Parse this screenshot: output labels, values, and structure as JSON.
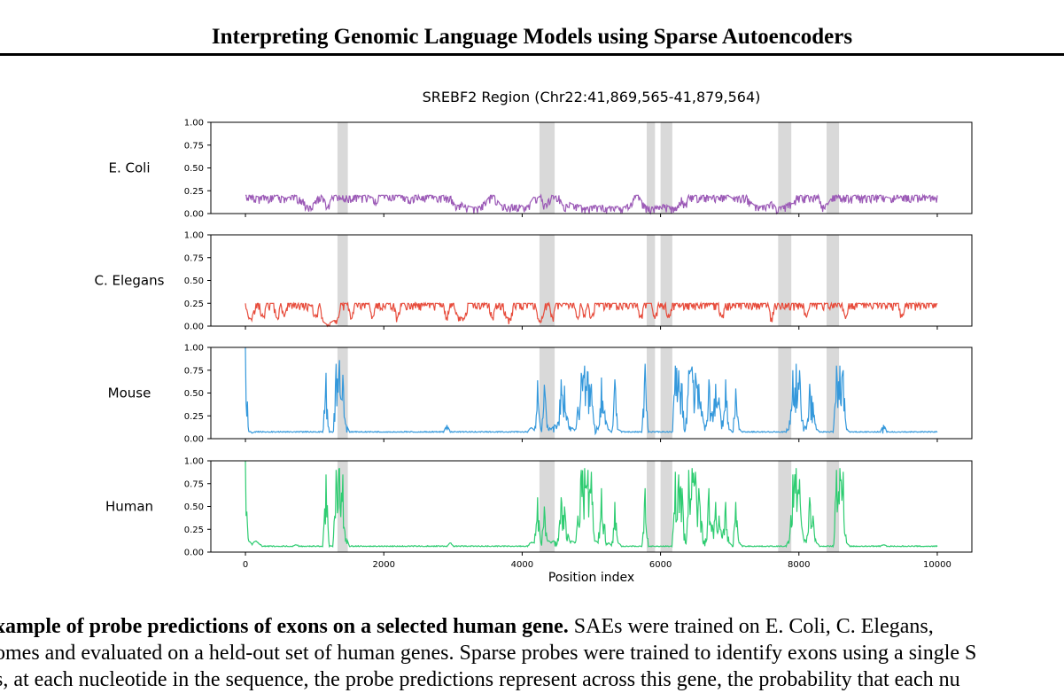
{
  "header": {
    "title": "Interpreting Genomic Language Models using Sparse Autoencoders"
  },
  "chart_data": {
    "type": "line",
    "title": "SREBF2 Region (Chr22:41,869,565-41,879,564)",
    "xlabel": "Position index",
    "xlim": [
      -500,
      10500
    ],
    "xticks": [
      0,
      2000,
      4000,
      6000,
      8000,
      10000
    ],
    "ylim": [
      0,
      1
    ],
    "yticks": [
      "0.00",
      "0.25",
      "0.50",
      "0.75",
      "1.00"
    ],
    "grid": false,
    "exon_regions": [
      [
        1330,
        1480
      ],
      [
        4250,
        4470
      ],
      [
        5800,
        5920
      ],
      [
        6000,
        6170
      ],
      [
        7700,
        7890
      ],
      [
        8400,
        8580
      ]
    ],
    "exon_color": "#d9d9d9",
    "series": [
      {
        "name": "E. Coli",
        "color": "#9b59b6",
        "kind": "low",
        "values": [
          0.2,
          0.2,
          0.2,
          0.19,
          0.18,
          0.2,
          0.18,
          0.2,
          0.2,
          0.2,
          0.19,
          0.17,
          0.18,
          0.2,
          0.2,
          0.18,
          0.16,
          0.09,
          0.08,
          0.12,
          0.18,
          0.2,
          0.15,
          0.09,
          0.19,
          0.2,
          0.2,
          0.2,
          0.2,
          0.19,
          0.2,
          0.2,
          0.19,
          0.2,
          0.2,
          0.18,
          0.16,
          0.2,
          0.2,
          0.2,
          0.2,
          0.2,
          0.2,
          0.2,
          0.19,
          0.18,
          0.17,
          0.2,
          0.2,
          0.19,
          0.2,
          0.2,
          0.2,
          0.18,
          0.19,
          0.2,
          0.18,
          0.19,
          0.1,
          0.09,
          0.12,
          0.1,
          0.08,
          0.07,
          0.07,
          0.08,
          0.12,
          0.15,
          0.2,
          0.2,
          0.14,
          0.09,
          0.1,
          0.08,
          0.1,
          0.09,
          0.1,
          0.08,
          0.08,
          0.12,
          0.18,
          0.17,
          0.2,
          0.1,
          0.15,
          0.2,
          0.19,
          0.2,
          0.09,
          0.1,
          0.12,
          0.1,
          0.1,
          0.09,
          0.07,
          0.07,
          0.08,
          0.09,
          0.08,
          0.09,
          0.07,
          0.08,
          0.07,
          0.08,
          0.07,
          0.07,
          0.1,
          0.12,
          0.2,
          0.2,
          0.14,
          0.09,
          0.08,
          0.07,
          0.08,
          0.08,
          0.1,
          0.09,
          0.07,
          0.07,
          0.09,
          0.18,
          0.09,
          0.2,
          0.2,
          0.2,
          0.18,
          0.2,
          0.2,
          0.18,
          0.2,
          0.19,
          0.2,
          0.2,
          0.2,
          0.17,
          0.18,
          0.19,
          0.2,
          0.2,
          0.14,
          0.1,
          0.09,
          0.08,
          0.09,
          0.1,
          0.13,
          0.08,
          0.07,
          0.08,
          0.1,
          0.12,
          0.11,
          0.2,
          0.2,
          0.19,
          0.2,
          0.18,
          0.2,
          0.2,
          0.09,
          0.1,
          0.13,
          0.2,
          0.2,
          0.2,
          0.2,
          0.2,
          0.18,
          0.2,
          0.2,
          0.19,
          0.2,
          0.19,
          0.2,
          0.2,
          0.2,
          0.2,
          0.18,
          0.17,
          0.2,
          0.2,
          0.19,
          0.2,
          0.2,
          0.2,
          0.2,
          0.2,
          0.2,
          0.19,
          0.2,
          0.18,
          0.2
        ]
      },
      {
        "name": "C. Elegans",
        "color": "#e74c3c",
        "kind": "low",
        "values": [
          0.25,
          0.08,
          0.12,
          0.25,
          0.25,
          0.1,
          0.25,
          0.25,
          0.25,
          0.09,
          0.25,
          0.1,
          0.25,
          0.25,
          0.25,
          0.25,
          0.25,
          0.25,
          0.24,
          0.23,
          0.1,
          0.25,
          0.05,
          0.02,
          0.04,
          0.06,
          0.07,
          0.25,
          0.25,
          0.25,
          0.08,
          0.25,
          0.25,
          0.25,
          0.25,
          0.25,
          0.1,
          0.25,
          0.25,
          0.25,
          0.25,
          0.25,
          0.25,
          0.09,
          0.25,
          0.25,
          0.25,
          0.25,
          0.25,
          0.25,
          0.25,
          0.25,
          0.25,
          0.25,
          0.25,
          0.25,
          0.25,
          0.09,
          0.25,
          0.25,
          0.12,
          0.1,
          0.08,
          0.25,
          0.25,
          0.25,
          0.25,
          0.25,
          0.25,
          0.25,
          0.09,
          0.25,
          0.25,
          0.25,
          0.1,
          0.08,
          0.25,
          0.25,
          0.25,
          0.25,
          0.25,
          0.25,
          0.25,
          0.08,
          0.1,
          0.25,
          0.25,
          0.09,
          0.25,
          0.25,
          0.25,
          0.25,
          0.25,
          0.25,
          0.1,
          0.25,
          0.12,
          0.25,
          0.1,
          0.25,
          0.25,
          0.25,
          0.25,
          0.25,
          0.25,
          0.25,
          0.25,
          0.25,
          0.25,
          0.25,
          0.25,
          0.25,
          0.1,
          0.25,
          0.25,
          0.25,
          0.08,
          0.25,
          0.25,
          0.25,
          0.09,
          0.25,
          0.25,
          0.25,
          0.25,
          0.25,
          0.25,
          0.25,
          0.25,
          0.25,
          0.25,
          0.25,
          0.25,
          0.25,
          0.25,
          0.1,
          0.25,
          0.25,
          0.25,
          0.25,
          0.25,
          0.25,
          0.25,
          0.25,
          0.25,
          0.25,
          0.25,
          0.25,
          0.25,
          0.09,
          0.25,
          0.25,
          0.25,
          0.25,
          0.25,
          0.25,
          0.25,
          0.25,
          0.25,
          0.1,
          0.25,
          0.25,
          0.25,
          0.25,
          0.25,
          0.25,
          0.25,
          0.25,
          0.25,
          0.25,
          0.08,
          0.25,
          0.25,
          0.25,
          0.25,
          0.25,
          0.25,
          0.25,
          0.25,
          0.25,
          0.25,
          0.25,
          0.25,
          0.25,
          0.25,
          0.25,
          0.1,
          0.25,
          0.25,
          0.25,
          0.25,
          0.25,
          0.25,
          0.25,
          0.25,
          0.25,
          0.25
        ]
      },
      {
        "name": "Mouse",
        "color": "#3498db",
        "kind": "spiky",
        "values": [
          1.0,
          0.08,
          0.06,
          0.07,
          0.07,
          0.07,
          0.07,
          0.07,
          0.07,
          0.07,
          0.07,
          0.07,
          0.07,
          0.07,
          0.07,
          0.07,
          0.07,
          0.07,
          0.07,
          0.07,
          0.07,
          0.07,
          0.07,
          0.07,
          0.72,
          0.07,
          0.07,
          0.82,
          0.86,
          0.7,
          0.15,
          0.07,
          0.07,
          0.07,
          0.07,
          0.07,
          0.07,
          0.07,
          0.07,
          0.07,
          0.07,
          0.07,
          0.07,
          0.07,
          0.07,
          0.07,
          0.07,
          0.07,
          0.07,
          0.07,
          0.07,
          0.07,
          0.07,
          0.07,
          0.07,
          0.07,
          0.07,
          0.07,
          0.07,
          0.07,
          0.15,
          0.07,
          0.07,
          0.07,
          0.07,
          0.07,
          0.07,
          0.07,
          0.07,
          0.07,
          0.07,
          0.07,
          0.07,
          0.07,
          0.07,
          0.07,
          0.07,
          0.07,
          0.07,
          0.07,
          0.07,
          0.07,
          0.07,
          0.07,
          0.07,
          0.12,
          0.09,
          0.64,
          0.1,
          0.59,
          0.14,
          0.1,
          0.15,
          0.18,
          0.65,
          0.58,
          0.22,
          0.12,
          0.09,
          0.35,
          0.72,
          0.8,
          0.73,
          0.6,
          0.15,
          0.1,
          0.67,
          0.3,
          0.1,
          0.07,
          0.65,
          0.1,
          0.07,
          0.07,
          0.07,
          0.07,
          0.07,
          0.07,
          0.07,
          0.82,
          0.07,
          0.07,
          0.07,
          0.07,
          0.07,
          0.07,
          0.07,
          0.07,
          0.8,
          0.75,
          0.6,
          0.1,
          0.75,
          0.79,
          0.72,
          0.6,
          0.3,
          0.15,
          0.65,
          0.3,
          0.6,
          0.45,
          0.2,
          0.65,
          0.1,
          0.07,
          0.55,
          0.1,
          0.07,
          0.07,
          0.07,
          0.07,
          0.07,
          0.07,
          0.07,
          0.07,
          0.07,
          0.07,
          0.07,
          0.07,
          0.07,
          0.07,
          0.2,
          0.75,
          0.82,
          0.75,
          0.2,
          0.1,
          0.6,
          0.4,
          0.1,
          0.07,
          0.07,
          0.07,
          0.07,
          0.07,
          0.8,
          0.8,
          0.75,
          0.1,
          0.07,
          0.07,
          0.07,
          0.07,
          0.07,
          0.07,
          0.07,
          0.07,
          0.07,
          0.07,
          0.15,
          0.07,
          0.07,
          0.07,
          0.07,
          0.07,
          0.07,
          0.07,
          0.07,
          0.07,
          0.07,
          0.07,
          0.07,
          0.07,
          0.07,
          0.07,
          0.07
        ]
      },
      {
        "name": "Human",
        "color": "#2ecc71",
        "kind": "spiky",
        "values": [
          1.0,
          0.12,
          0.08,
          0.12,
          0.09,
          0.06,
          0.06,
          0.06,
          0.06,
          0.06,
          0.06,
          0.06,
          0.06,
          0.06,
          0.06,
          0.08,
          0.06,
          0.06,
          0.06,
          0.06,
          0.06,
          0.06,
          0.06,
          0.06,
          0.85,
          0.06,
          0.06,
          0.9,
          0.92,
          0.85,
          0.15,
          0.06,
          0.06,
          0.06,
          0.06,
          0.06,
          0.06,
          0.06,
          0.06,
          0.06,
          0.06,
          0.06,
          0.06,
          0.06,
          0.06,
          0.06,
          0.06,
          0.06,
          0.06,
          0.06,
          0.06,
          0.06,
          0.06,
          0.06,
          0.06,
          0.06,
          0.06,
          0.06,
          0.06,
          0.06,
          0.06,
          0.1,
          0.06,
          0.06,
          0.06,
          0.06,
          0.06,
          0.06,
          0.06,
          0.06,
          0.06,
          0.06,
          0.06,
          0.06,
          0.06,
          0.06,
          0.06,
          0.06,
          0.06,
          0.06,
          0.06,
          0.06,
          0.06,
          0.06,
          0.06,
          0.1,
          0.1,
          0.6,
          0.1,
          0.5,
          0.12,
          0.1,
          0.12,
          0.15,
          0.6,
          0.5,
          0.2,
          0.12,
          0.1,
          0.4,
          0.9,
          0.92,
          0.9,
          0.88,
          0.12,
          0.1,
          0.7,
          0.3,
          0.1,
          0.07,
          0.55,
          0.1,
          0.06,
          0.06,
          0.06,
          0.06,
          0.06,
          0.06,
          0.06,
          0.7,
          0.06,
          0.06,
          0.06,
          0.06,
          0.06,
          0.06,
          0.06,
          0.06,
          0.88,
          0.85,
          0.7,
          0.1,
          0.9,
          0.92,
          0.88,
          0.7,
          0.3,
          0.15,
          0.7,
          0.3,
          0.55,
          0.4,
          0.15,
          0.55,
          0.1,
          0.06,
          0.55,
          0.1,
          0.06,
          0.06,
          0.06,
          0.06,
          0.06,
          0.06,
          0.06,
          0.06,
          0.06,
          0.06,
          0.06,
          0.06,
          0.06,
          0.06,
          0.15,
          0.85,
          0.92,
          0.8,
          0.2,
          0.1,
          0.6,
          0.4,
          0.1,
          0.06,
          0.06,
          0.06,
          0.06,
          0.06,
          0.9,
          0.92,
          0.88,
          0.1,
          0.06,
          0.06,
          0.06,
          0.06,
          0.06,
          0.06,
          0.06,
          0.06,
          0.06,
          0.06,
          0.08,
          0.06,
          0.06,
          0.06,
          0.06,
          0.06,
          0.06,
          0.06,
          0.06,
          0.06,
          0.06,
          0.06,
          0.06,
          0.06,
          0.06,
          0.06,
          0.06
        ]
      }
    ]
  },
  "caption": {
    "lines": [
      {
        "bold": "xample of probe predictions of exons on a selected human gene.",
        "text": " SAEs were trained on E. Coli, C. Elegans,"
      },
      {
        "bold": "",
        "text": "omes and evaluated on a held-out set of human genes. Sparse probes were trained to identify exons using a single S"
      },
      {
        "bold": "",
        "text": "s, at each nucleotide in the sequence, the probe predictions represent across this gene, the probability that each nu"
      }
    ]
  }
}
